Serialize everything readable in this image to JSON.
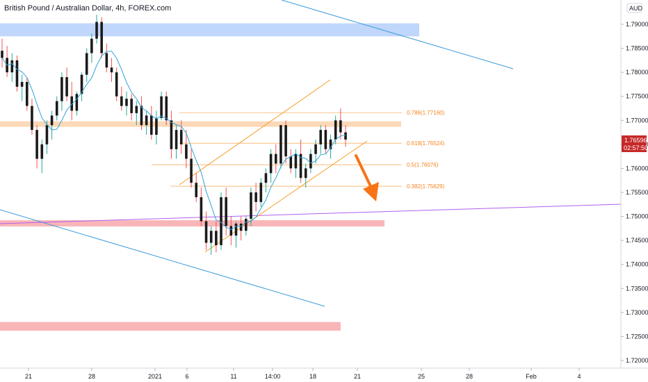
{
  "header": {
    "title": "British Pound / Australian Dollar, 4h, FOREX.com",
    "currency_badge": "AUD"
  },
  "colors": {
    "bull_candle": "#26a69a",
    "bear_candle": "#ef5350",
    "candle_body_bull": "#1b1b1b",
    "ma_line": "#2ea3d9",
    "channel": "#f59d26",
    "fib": "#f5a040",
    "trendline_blue": "#3b9ad9",
    "trendline_purple": "#b05ff0",
    "zone_blue": "#b9d1fb",
    "zone_orange": "#fbd5b0",
    "zone_red": "#f8aeb0",
    "arrow": "#f97316",
    "price_tag": "#c62828"
  },
  "chart_data": {
    "type": "candlestick",
    "title": "British Pound / Australian Dollar, 4h, FOREX.com",
    "ylim": [
      1.7175,
      1.794
    ],
    "y_ticks": [
      "1.79000",
      "1.78500",
      "1.78000",
      "1.77500",
      "1.77000",
      "1.76500",
      "1.76000",
      "1.75500",
      "1.75000",
      "1.74500",
      "1.74000",
      "1.73500",
      "1.73000",
      "1.72500",
      "1.72000"
    ],
    "x_ticks": [
      "21",
      "28",
      "2021",
      "6",
      "11",
      "14:00",
      "18",
      "21",
      "25",
      "28",
      "Feb",
      "4"
    ],
    "current_price": "1.76596",
    "countdown": "02:57:50",
    "fib_levels": [
      {
        "label": "0.786(1.77160)",
        "value": 1.7716
      },
      {
        "label": "0.618(1.76524)",
        "value": 1.76524
      },
      {
        "label": "0.5(1.76076)",
        "value": 1.76076
      },
      {
        "label": "0.382(1.75629)",
        "value": 1.75629
      }
    ],
    "zones": [
      {
        "kind": "blue",
        "from": 1.7875,
        "to": 1.7902
      },
      {
        "kind": "orange",
        "from": 1.7687,
        "to": 1.7698
      },
      {
        "kind": "red",
        "from": 1.7479,
        "to": 1.7492
      },
      {
        "kind": "red",
        "from": 1.7262,
        "to": 1.728
      }
    ],
    "candles_ohlc": [
      [
        1.7845,
        1.787,
        1.781,
        1.783
      ],
      [
        1.783,
        1.7855,
        1.779,
        1.78
      ],
      [
        1.78,
        1.784,
        1.778,
        1.7825
      ],
      [
        1.7825,
        1.7835,
        1.776,
        1.777
      ],
      [
        1.777,
        1.7795,
        1.774,
        1.778
      ],
      [
        1.778,
        1.779,
        1.772,
        1.773
      ],
      [
        1.773,
        1.7745,
        1.767,
        1.768
      ],
      [
        1.768,
        1.769,
        1.76,
        1.762
      ],
      [
        1.762,
        1.766,
        1.759,
        1.765
      ],
      [
        1.765,
        1.77,
        1.763,
        1.769
      ],
      [
        1.769,
        1.772,
        1.766,
        1.771
      ],
      [
        1.771,
        1.775,
        1.77,
        1.774
      ],
      [
        1.774,
        1.78,
        1.772,
        1.779
      ],
      [
        1.779,
        1.781,
        1.774,
        1.775
      ],
      [
        1.775,
        1.778,
        1.77,
        1.772
      ],
      [
        1.772,
        1.776,
        1.771,
        1.7755
      ],
      [
        1.7755,
        1.78,
        1.774,
        1.7795
      ],
      [
        1.7795,
        1.785,
        1.778,
        1.784
      ],
      [
        1.784,
        1.788,
        1.782,
        1.787
      ],
      [
        1.787,
        1.792,
        1.786,
        1.7905
      ],
      [
        1.7905,
        1.7915,
        1.783,
        1.784
      ],
      [
        1.784,
        1.786,
        1.78,
        1.781
      ],
      [
        1.781,
        1.783,
        1.778,
        1.78
      ],
      [
        1.78,
        1.781,
        1.774,
        1.775
      ],
      [
        1.775,
        1.777,
        1.772,
        1.773
      ],
      [
        1.773,
        1.776,
        1.771,
        1.7745
      ],
      [
        1.7745,
        1.7755,
        1.77,
        1.7715
      ],
      [
        1.7715,
        1.774,
        1.769,
        1.773
      ],
      [
        1.773,
        1.775,
        1.768,
        1.769
      ],
      [
        1.769,
        1.772,
        1.767,
        1.771
      ],
      [
        1.771,
        1.773,
        1.766,
        1.767
      ],
      [
        1.767,
        1.772,
        1.765,
        1.7705
      ],
      [
        1.7705,
        1.776,
        1.77,
        1.775
      ],
      [
        1.775,
        1.776,
        1.769,
        1.77
      ],
      [
        1.77,
        1.772,
        1.762,
        1.764
      ],
      [
        1.764,
        1.769,
        1.762,
        1.768
      ],
      [
        1.768,
        1.77,
        1.763,
        1.765
      ],
      [
        1.765,
        1.768,
        1.76,
        1.762
      ],
      [
        1.762,
        1.764,
        1.756,
        1.757
      ],
      [
        1.757,
        1.759,
        1.753,
        1.754
      ],
      [
        1.754,
        1.756,
        1.748,
        1.749
      ],
      [
        1.749,
        1.751,
        1.743,
        1.7445
      ],
      [
        1.7445,
        1.748,
        1.742,
        1.747
      ],
      [
        1.747,
        1.749,
        1.7425,
        1.744
      ],
      [
        1.744,
        1.755,
        1.743,
        1.754
      ],
      [
        1.754,
        1.756,
        1.746,
        1.748
      ],
      [
        1.748,
        1.75,
        1.744,
        1.746
      ],
      [
        1.746,
        1.749,
        1.7435,
        1.7485
      ],
      [
        1.7485,
        1.75,
        1.745,
        1.747
      ],
      [
        1.747,
        1.75,
        1.746,
        1.7495
      ],
      [
        1.7495,
        1.756,
        1.748,
        1.755
      ],
      [
        1.755,
        1.757,
        1.751,
        1.753
      ],
      [
        1.753,
        1.758,
        1.752,
        1.757
      ],
      [
        1.757,
        1.76,
        1.755,
        1.759
      ],
      [
        1.759,
        1.764,
        1.757,
        1.763
      ],
      [
        1.763,
        1.765,
        1.759,
        1.761
      ],
      [
        1.761,
        1.769,
        1.76,
        1.769
      ],
      [
        1.769,
        1.77,
        1.761,
        1.7625
      ],
      [
        1.7625,
        1.764,
        1.759,
        1.76
      ],
      [
        1.76,
        1.764,
        1.758,
        1.763
      ],
      [
        1.763,
        1.766,
        1.757,
        1.758
      ],
      [
        1.758,
        1.761,
        1.756,
        1.76
      ],
      [
        1.76,
        1.764,
        1.759,
        1.763
      ],
      [
        1.763,
        1.766,
        1.761,
        1.765
      ],
      [
        1.765,
        1.769,
        1.763,
        1.768
      ],
      [
        1.768,
        1.769,
        1.763,
        1.764
      ],
      [
        1.764,
        1.767,
        1.762,
        1.766
      ],
      [
        1.766,
        1.771,
        1.765,
        1.77
      ],
      [
        1.77,
        1.7725,
        1.766,
        1.7675
      ],
      [
        1.7675,
        1.769,
        1.7645,
        1.766
      ]
    ]
  }
}
